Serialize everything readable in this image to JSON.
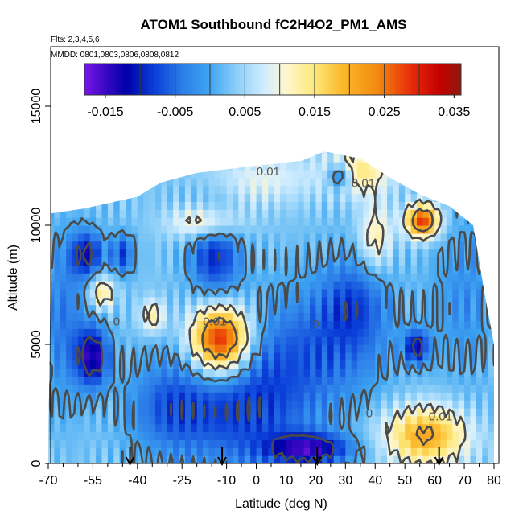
{
  "chart_data": {
    "type": "heatmap",
    "title": "ATOM1 Southbound fC2H4O2_PM1_AMS",
    "subtitle_lines": [
      "Flts: 2,3,4,5,6",
      "MMDD: 0801,0803,0806,0808,0812"
    ],
    "xlabel": "Latitude (deg N)",
    "ylabel": "Altitude (m)",
    "xlim": [
      -70,
      80
    ],
    "ylim": [
      0,
      17500
    ],
    "x_ticks_major": [
      -70,
      -55,
      -40,
      -25,
      -10,
      0,
      10,
      20,
      30,
      40,
      50,
      60,
      70,
      80
    ],
    "x_tick_labels": [
      "-70",
      "-55",
      "-40",
      "-25",
      "-10",
      "0",
      "10",
      "20",
      "30",
      "40",
      "50",
      "60",
      "70",
      "80"
    ],
    "x_ticks_minor": [
      -65,
      -60,
      -50,
      -45,
      -35,
      -30,
      -20,
      -15,
      -5,
      5,
      15,
      25,
      35,
      45,
      55,
      65,
      75
    ],
    "y_ticks": [
      0,
      5000,
      10000,
      15000
    ],
    "y_tick_labels": [
      "0",
      "5000",
      "10000",
      "15000"
    ],
    "colorbar": {
      "range": [
        -0.018,
        0.036
      ],
      "tick_values": [
        -0.015,
        -0.005,
        0.005,
        0.015,
        0.025,
        0.035
      ],
      "tick_labels": [
        "-0.015",
        "-0.005",
        "0.005",
        "0.015",
        "0.025",
        "0.035"
      ],
      "line_values": [
        -0.015,
        -0.01,
        -0.005,
        0,
        0.005,
        0.01,
        0.015,
        0.02,
        0.025,
        0.03
      ],
      "stops": [
        {
          "v": -0.018,
          "c": "#7b16e6"
        },
        {
          "v": -0.015,
          "c": "#3a08c4"
        },
        {
          "v": -0.012,
          "c": "#0000a8"
        },
        {
          "v": -0.008,
          "c": "#0a3ed8"
        },
        {
          "v": -0.004,
          "c": "#2c7de8"
        },
        {
          "v": 0.0,
          "c": "#3fa6f2"
        },
        {
          "v": 0.004,
          "c": "#8fd0f8"
        },
        {
          "v": 0.008,
          "c": "#d4eeff"
        },
        {
          "v": 0.011,
          "c": "#fff6cc"
        },
        {
          "v": 0.015,
          "c": "#fde87a"
        },
        {
          "v": 0.019,
          "c": "#fbb82a"
        },
        {
          "v": 0.024,
          "c": "#f48a10"
        },
        {
          "v": 0.029,
          "c": "#e62a08"
        },
        {
          "v": 0.033,
          "c": "#c30000"
        },
        {
          "v": 0.036,
          "c": "#8e1a10"
        }
      ]
    },
    "field_base": 0.003,
    "field_bumps": [
      {
        "x": -55,
        "y": 4500,
        "sx": 4,
        "sy": 900,
        "a": -0.016
      },
      {
        "x": -57,
        "y": 8800,
        "sx": 4,
        "sy": 700,
        "a": -0.013
      },
      {
        "x": -45,
        "y": 8800,
        "sx": 3,
        "sy": 600,
        "a": -0.01
      },
      {
        "x": -12,
        "y": 5200,
        "sx": 7,
        "sy": 1000,
        "a": 0.03
      },
      {
        "x": -14,
        "y": 8800,
        "sx": 6,
        "sy": 1300,
        "a": -0.012
      },
      {
        "x": -17,
        "y": 10100,
        "sx": 8,
        "sy": 500,
        "a": 0.012
      },
      {
        "x": -30,
        "y": 2400,
        "sx": 10,
        "sy": 1500,
        "a": -0.008
      },
      {
        "x": -5,
        "y": 2200,
        "sx": 15,
        "sy": 1800,
        "a": -0.01
      },
      {
        "x": 18,
        "y": 4800,
        "sx": 18,
        "sy": 2000,
        "a": -0.008
      },
      {
        "x": 18,
        "y": 600,
        "sx": 10,
        "sy": 500,
        "a": -0.016
      },
      {
        "x": 33,
        "y": 6800,
        "sx": 8,
        "sy": 1500,
        "a": -0.008
      },
      {
        "x": 57,
        "y": 1200,
        "sx": 10,
        "sy": 900,
        "a": 0.018
      },
      {
        "x": 56,
        "y": 10200,
        "sx": 4,
        "sy": 500,
        "a": 0.026
      },
      {
        "x": 54,
        "y": 4900,
        "sx": 3,
        "sy": 500,
        "a": -0.014
      },
      {
        "x": 28,
        "y": 12100,
        "sx": 3,
        "sy": 400,
        "a": -0.014
      },
      {
        "x": 34,
        "y": 12300,
        "sx": 8,
        "sy": 700,
        "a": 0.012
      },
      {
        "x": 2,
        "y": 12000,
        "sx": 12,
        "sy": 800,
        "a": 0.006
      },
      {
        "x": -52,
        "y": 7200,
        "sx": 3,
        "sy": 500,
        "a": 0.012
      },
      {
        "x": -35,
        "y": 6200,
        "sx": 3,
        "sy": 500,
        "a": 0.01
      },
      {
        "x": 40,
        "y": 9500,
        "sx": 4,
        "sy": 1000,
        "a": 0.01
      },
      {
        "x": -65,
        "y": 6000,
        "sx": 6,
        "sy": 2500,
        "a": -0.007
      },
      {
        "x": 70,
        "y": 7000,
        "sx": 8,
        "sy": 2500,
        "a": -0.005
      }
    ],
    "coverage_top": [
      {
        "x": -70,
        "y": 0
      },
      {
        "x": -69,
        "y": 10500
      },
      {
        "x": -58,
        "y": 10700
      },
      {
        "x": -40,
        "y": 11200
      },
      {
        "x": -32,
        "y": 11800
      },
      {
        "x": -20,
        "y": 12200
      },
      {
        "x": 0,
        "y": 12500
      },
      {
        "x": 15,
        "y": 12700
      },
      {
        "x": 23,
        "y": 13100
      },
      {
        "x": 35,
        "y": 12800
      },
      {
        "x": 45,
        "y": 12000
      },
      {
        "x": 55,
        "y": 11300
      },
      {
        "x": 65,
        "y": 10800
      },
      {
        "x": 73,
        "y": 10000
      },
      {
        "x": 77,
        "y": 7000
      },
      {
        "x": 80,
        "y": 5000
      },
      {
        "x": 80,
        "y": 0
      }
    ],
    "contour_labels": [
      {
        "text": "0.01",
        "x": 4,
        "y": 12100
      },
      {
        "text": "0.01",
        "x": 36,
        "y": 11600
      },
      {
        "text": "0",
        "x": -47,
        "y": 5800
      },
      {
        "text": "0.01",
        "x": -14,
        "y": 5800
      },
      {
        "text": "0",
        "x": 20,
        "y": 5700
      },
      {
        "text": "0",
        "x": 38,
        "y": 1950
      },
      {
        "text": "0.01",
        "x": 62,
        "y": 1800
      }
    ],
    "arrows_x": [
      -42.5,
      -11.5,
      20.5,
      61.5
    ]
  }
}
